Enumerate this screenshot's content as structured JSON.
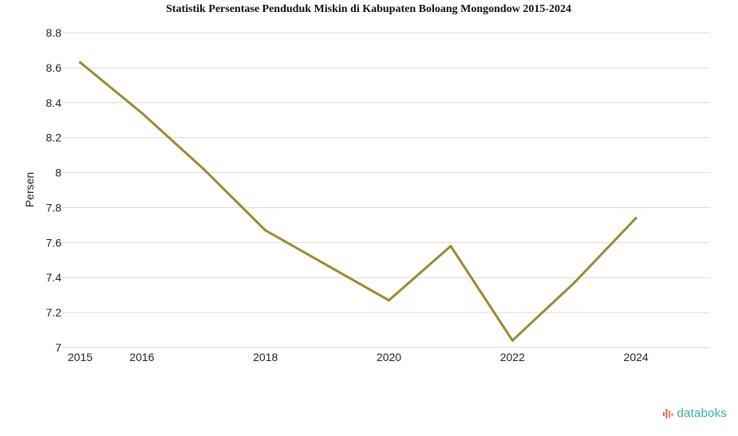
{
  "chart_data": {
    "type": "line",
    "title": "Statistik Persentase Penduduk Miskin di Kabupaten Boloang Mongondow 2015-2024",
    "xlabel": "",
    "ylabel": "Persen",
    "x": [
      2015,
      2016,
      2017,
      2018,
      2019,
      2020,
      2021,
      2022,
      2023,
      2024
    ],
    "x_ticks": [
      2015,
      2016,
      2018,
      2020,
      2022,
      2024
    ],
    "x_tick_labels": [
      "2015",
      "2016",
      "2018",
      "2020",
      "2022",
      "2024"
    ],
    "y_ticks": [
      7,
      7.2,
      7.4,
      7.6,
      7.8,
      8,
      8.2,
      8.4,
      8.6,
      8.8
    ],
    "y_tick_labels": [
      "7",
      "7.2",
      "7.4",
      "7.6",
      "7.8",
      "8",
      "8.2",
      "8.4",
      "8.6",
      "8.8"
    ],
    "ylim": [
      7,
      8.8
    ],
    "series": [
      {
        "values": [
          8.63,
          8.34,
          8.02,
          7.67,
          7.47,
          7.27,
          7.58,
          7.04,
          7.37,
          7.74
        ],
        "color": "#9a8a2e"
      }
    ],
    "grid": true,
    "legend": "none"
  },
  "brand": {
    "name": "databoks",
    "color": "#3aa89e",
    "icon": "databoks-logo-icon"
  }
}
